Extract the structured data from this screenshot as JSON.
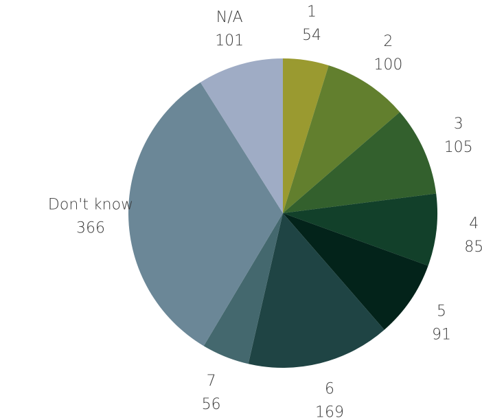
{
  "chart_data": {
    "type": "pie",
    "title": "",
    "start_angle_deg": 0,
    "direction": "clockwise",
    "slices": [
      {
        "label": "1",
        "value": 54,
        "color": "#9a9a30"
      },
      {
        "label": "2",
        "value": 100,
        "color": "#627f2e"
      },
      {
        "label": "3",
        "value": 105,
        "color": "#33602d"
      },
      {
        "label": "4",
        "value": 85,
        "color": "#12402a"
      },
      {
        "label": "5",
        "value": 91,
        "color": "#03231a"
      },
      {
        "label": "6",
        "value": 169,
        "color": "#1f4444"
      },
      {
        "label": "7",
        "value": 56,
        "color": "#44686e"
      },
      {
        "label": "Don't know",
        "value": 366,
        "color": "#6b8797"
      },
      {
        "label": "N/A",
        "value": 101,
        "color": "#9facc5"
      }
    ]
  }
}
